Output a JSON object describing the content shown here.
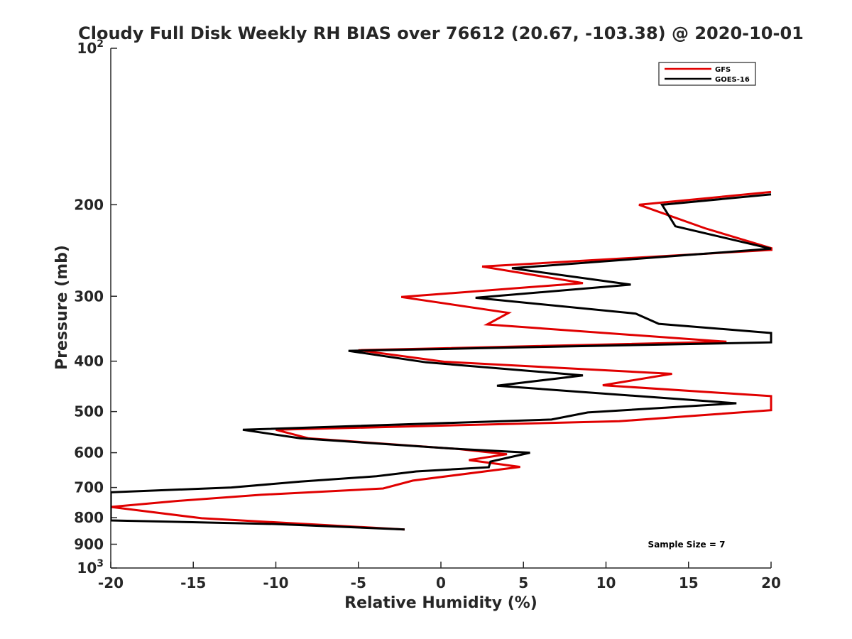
{
  "chart_data": {
    "type": "line",
    "title": "Cloudy Full Disk Weekly RH BIAS over 76612 (20.67, -103.38) @ 2020-10-01",
    "xlabel": "Relative Humidity (%)",
    "ylabel": "Pressure (mb)",
    "xlim": [
      -20,
      20
    ],
    "ylim": [
      100,
      1000
    ],
    "yscale": "log",
    "yreversed": true,
    "x_ticks": [
      -20,
      -15,
      -10,
      -5,
      0,
      5,
      10,
      15,
      20
    ],
    "y_ticks": [
      {
        "value": 100,
        "label": "10",
        "sup": "2"
      },
      {
        "value": 200,
        "label": "200"
      },
      {
        "value": 300,
        "label": "300"
      },
      {
        "value": 400,
        "label": "400"
      },
      {
        "value": 500,
        "label": "500"
      },
      {
        "value": 600,
        "label": "600"
      },
      {
        "value": 700,
        "label": "700"
      },
      {
        "value": 800,
        "label": "800"
      },
      {
        "value": 900,
        "label": "900"
      },
      {
        "value": 1000,
        "label": "10",
        "sup": "3"
      }
    ],
    "legend": {
      "position": "top-right",
      "entries": [
        "GFS",
        "GOES-16"
      ]
    },
    "annotation": "Sample Size = 7",
    "series": [
      {
        "name": "GFS",
        "color": "#e00000",
        "points": [
          [
            20,
            189
          ],
          [
            12,
            200
          ],
          [
            16,
            222
          ],
          [
            20.3,
            244
          ],
          [
            2.5,
            263
          ],
          [
            8.6,
            283
          ],
          [
            -2.4,
            301
          ],
          [
            4.1,
            323
          ],
          [
            2.8,
            340
          ],
          [
            17.3,
            367
          ],
          [
            -5.0,
            381
          ],
          [
            0.2,
            401
          ],
          [
            14.0,
            423
          ],
          [
            9.8,
            445
          ],
          [
            20,
            467
          ],
          [
            20,
            497
          ],
          [
            16.2,
            507
          ],
          [
            10.8,
            522
          ],
          [
            -10.0,
            542
          ],
          [
            -8.0,
            563
          ],
          [
            1.0,
            590
          ],
          [
            4.0,
            604
          ],
          [
            1.7,
            620
          ],
          [
            4.8,
            639
          ],
          [
            -1.7,
            679
          ],
          [
            -3.5,
            703
          ],
          [
            -10.9,
            723
          ],
          [
            -16.0,
            743
          ],
          [
            -20,
            763
          ],
          [
            -14.5,
            802
          ],
          [
            -2.2,
            843
          ]
        ]
      },
      {
        "name": "GOES-16",
        "color": "#000000",
        "points": [
          [
            20,
            191
          ],
          [
            13.4,
            200
          ],
          [
            14.2,
            220
          ],
          [
            20,
            243
          ],
          [
            4.3,
            265
          ],
          [
            11.5,
            285
          ],
          [
            2.1,
            302
          ],
          [
            11.8,
            324
          ],
          [
            13.2,
            339
          ],
          [
            20,
            353
          ],
          [
            20,
            368
          ],
          [
            -5.6,
            382
          ],
          [
            -0.9,
            402
          ],
          [
            8.6,
            426
          ],
          [
            3.4,
            446
          ],
          [
            17.9,
            482
          ],
          [
            8.9,
            502
          ],
          [
            6.7,
            518
          ],
          [
            -12.0,
            542
          ],
          [
            -8.5,
            563
          ],
          [
            1.0,
            590
          ],
          [
            5.4,
            600
          ],
          [
            3.0,
            624
          ],
          [
            2.9,
            640
          ],
          [
            -1.5,
            652
          ],
          [
            -3.9,
            666
          ],
          [
            -8.5,
            682
          ],
          [
            -12.7,
            700
          ],
          [
            -20,
            715
          ],
          [
            -20,
            810
          ],
          [
            -10.0,
            823
          ],
          [
            -2.2,
            843
          ]
        ]
      }
    ]
  }
}
